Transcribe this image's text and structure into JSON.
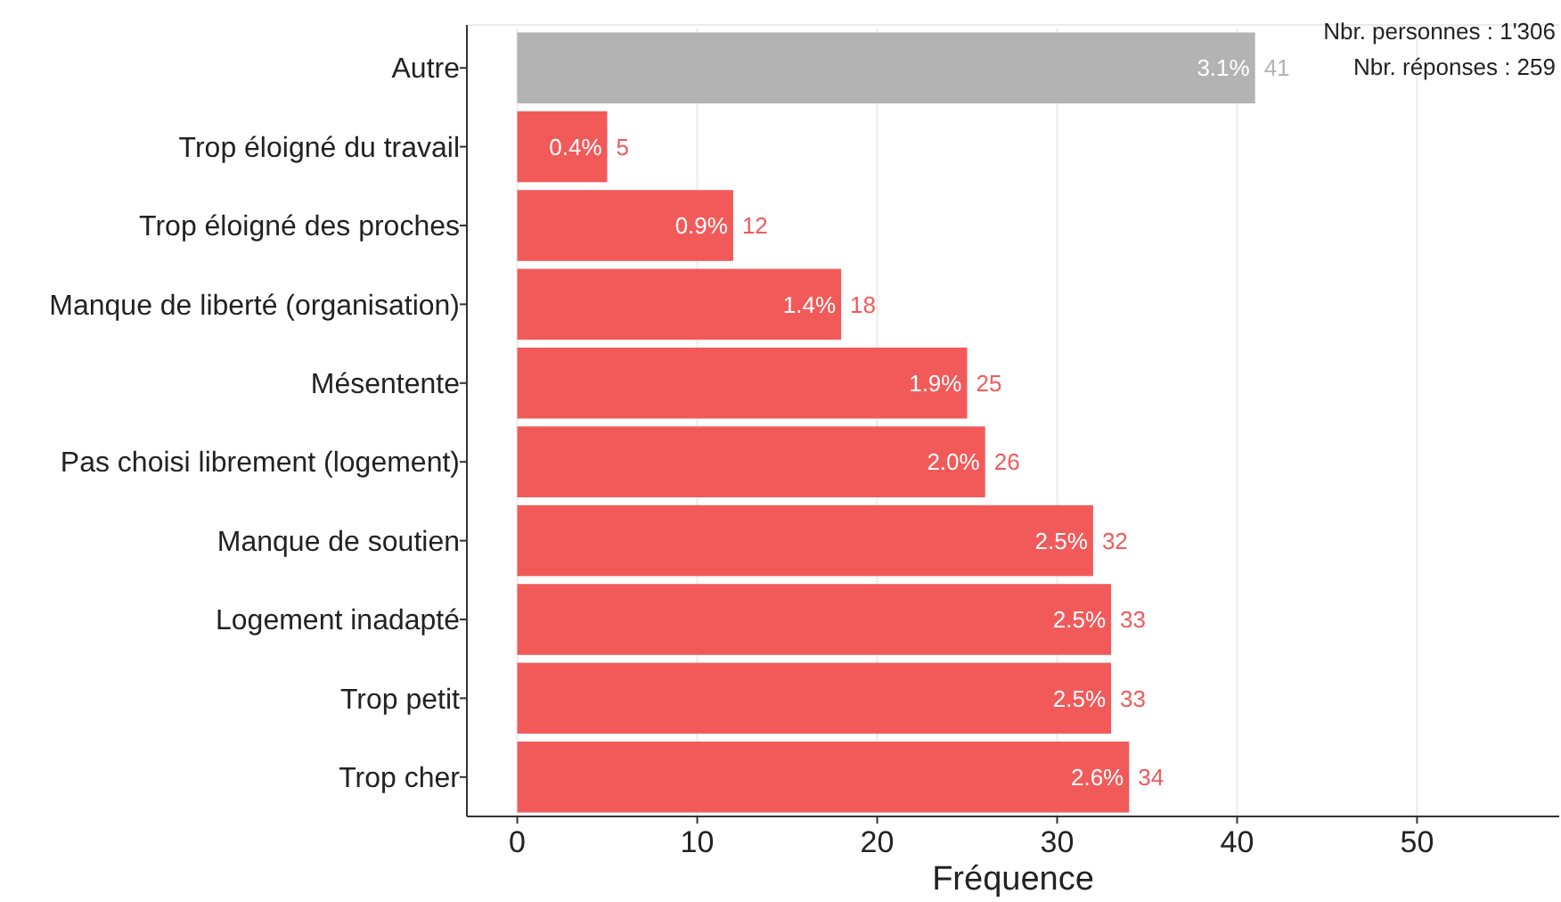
{
  "chart_data": {
    "type": "bar",
    "orientation": "horizontal",
    "xlabel": "Fréquence",
    "categories": [
      "Autre",
      "Trop éloigné du travail",
      "Trop éloigné des proches",
      "Manque de liberté (organisation)",
      "Mésentente",
      "Pas choisi librement (logement)",
      "Manque de soutien",
      "Logement inadapté",
      "Trop petit",
      "Trop cher"
    ],
    "values": [
      41,
      5,
      12,
      18,
      25,
      26,
      32,
      33,
      33,
      34
    ],
    "colors": [
      "#b3b3b3",
      "#f25a5a",
      "#f25a5a",
      "#f25a5a",
      "#f25a5a",
      "#f25a5a",
      "#f25a5a",
      "#f25a5a",
      "#f25a5a",
      "#f25a5a"
    ],
    "data_labels": true,
    "xlim": [
      -2.8,
      57.9
    ],
    "xticks": [
      0,
      10,
      20,
      30,
      40,
      50
    ],
    "grid": "x",
    "annotations": [
      "Nbr. personnes : 1'306",
      "Nbr. réponses : 259",
      {
        "text": "3.1%",
        "x": 41,
        "y": "Autre"
      },
      {
        "text": "0.4%",
        "x": 5,
        "y": "Trop éloigné du travail"
      },
      {
        "text": "0.9%",
        "x": 12,
        "y": "Trop éloigné des proches"
      },
      {
        "text": "1.4%",
        "x": 18,
        "y": "Manque de liberté (organisation)"
      },
      {
        "text": "1.9%",
        "x": 25,
        "y": "Mésentente"
      },
      {
        "text": "2.0%",
        "x": 26,
        "y": "Pas choisi librement (logement)"
      },
      {
        "text": "2.5%",
        "x": 32,
        "y": "Manque de soutien"
      },
      {
        "text": "2.5%",
        "x": 33,
        "y": "Logement inadapté"
      },
      {
        "text": "2.5%",
        "x": 33,
        "y": "Trop petit"
      },
      {
        "text": "2.6%",
        "x": 34,
        "y": "Trop cher"
      }
    ]
  }
}
